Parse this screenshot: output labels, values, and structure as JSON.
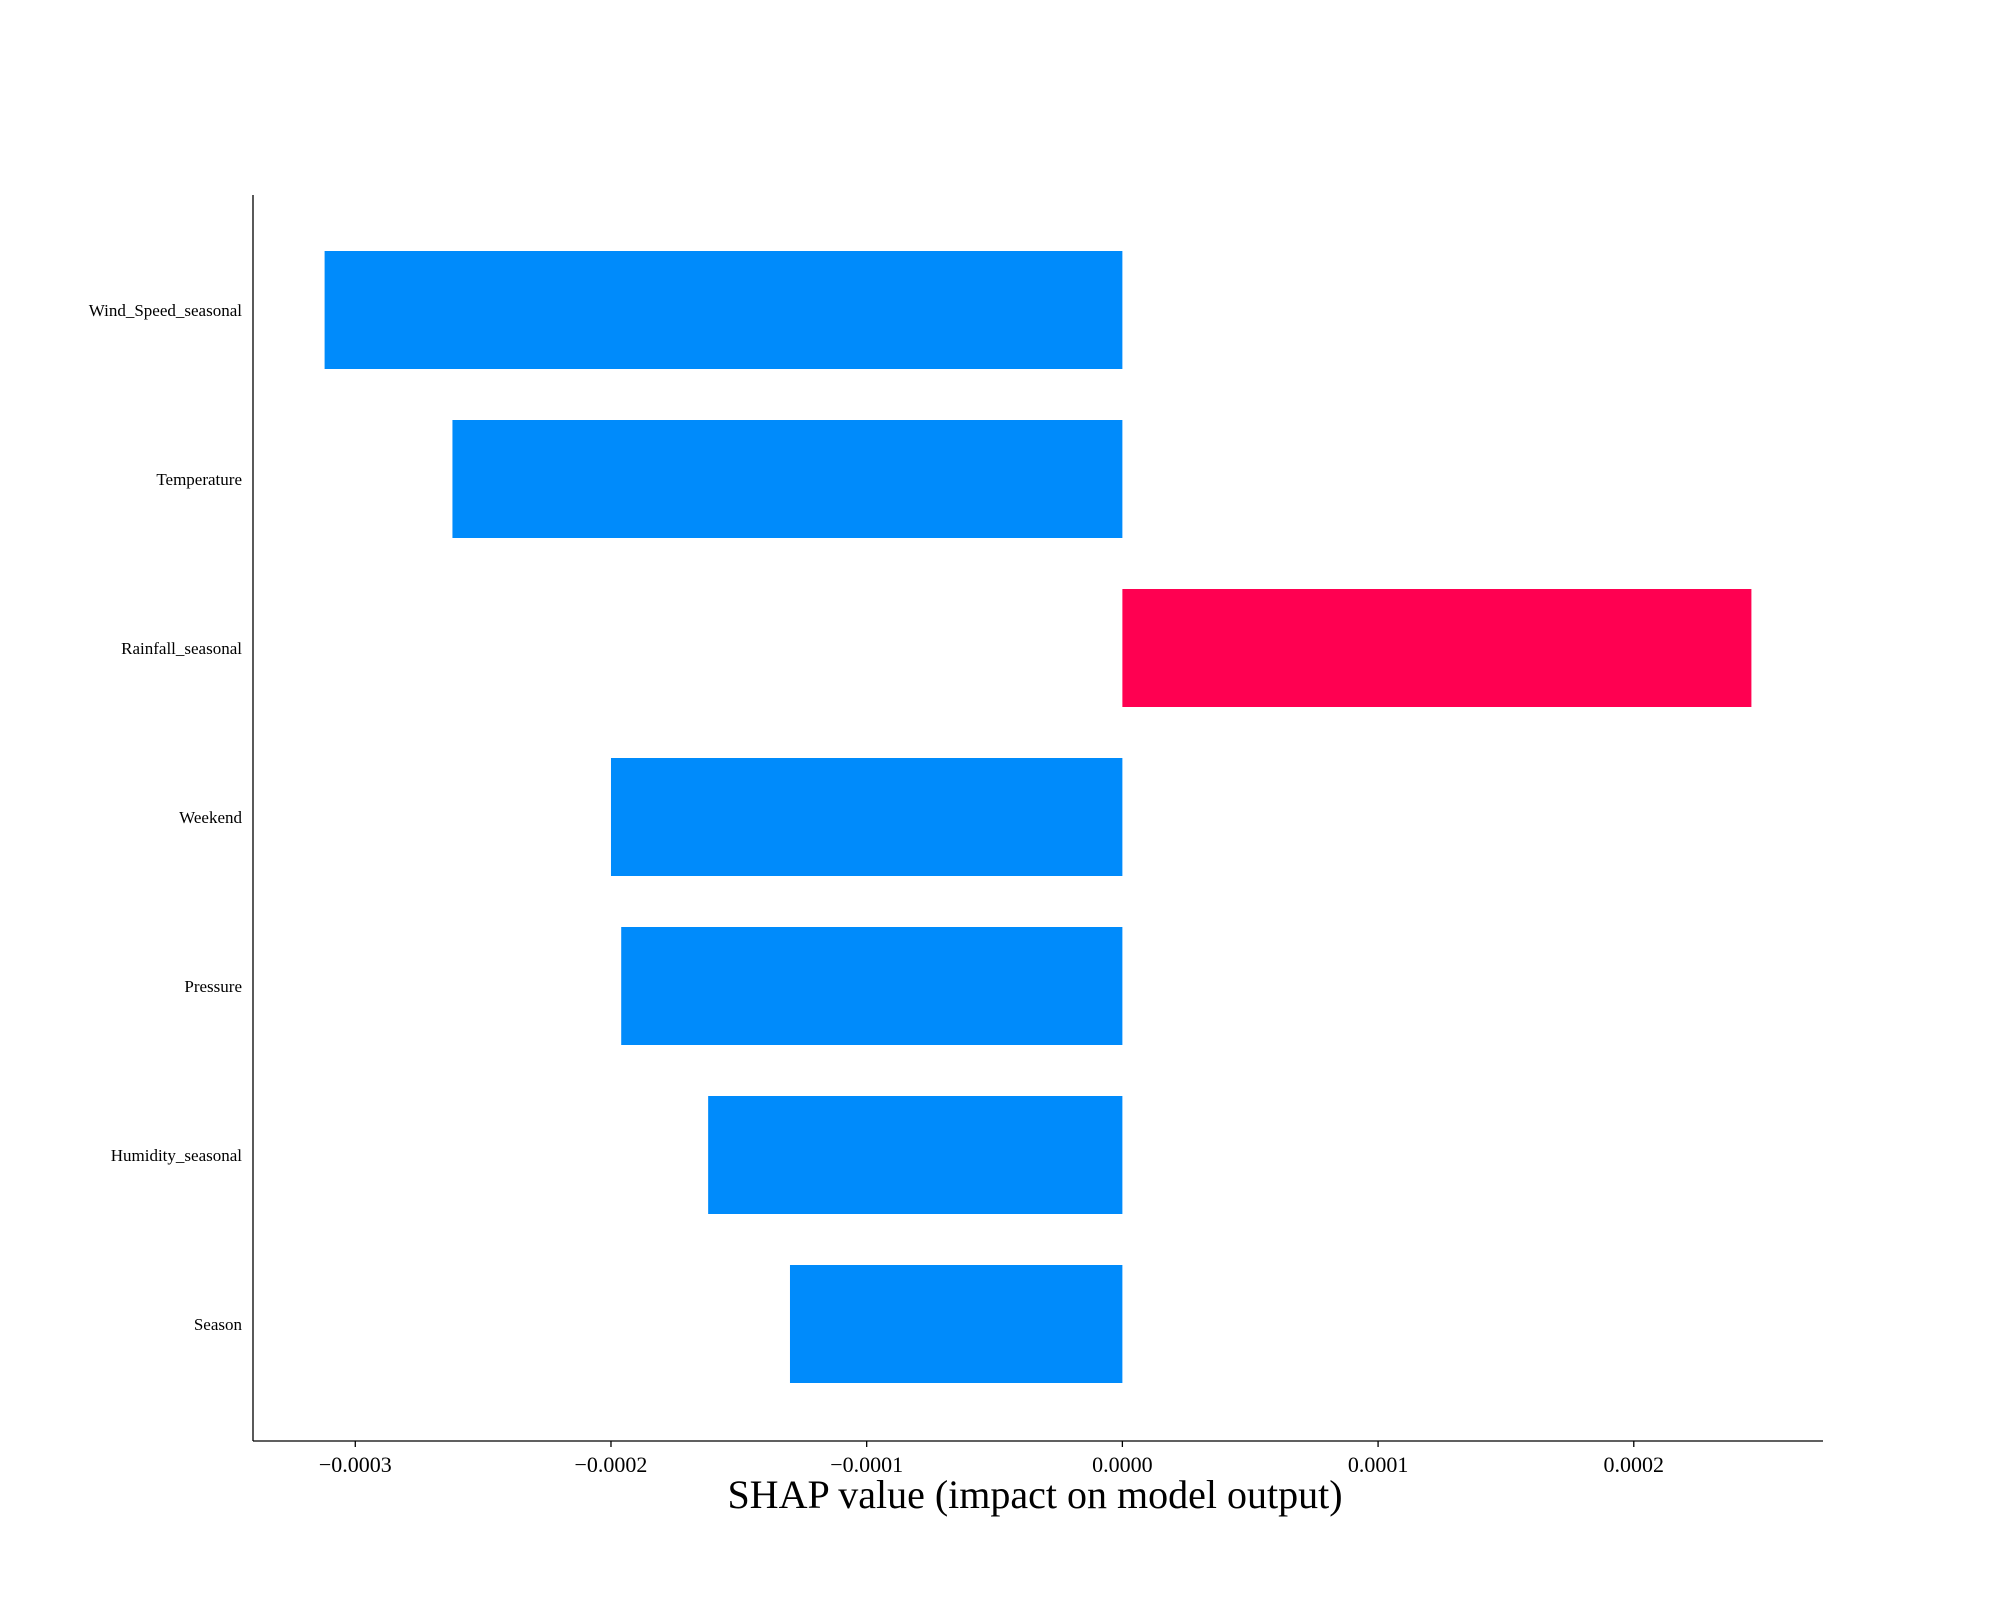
{
  "chart_data": {
    "type": "bar",
    "orientation": "horizontal",
    "categories": [
      "Wind_Speed_seasonal",
      "Temperature",
      "Rainfall_seasonal",
      "Weekend",
      "Pressure",
      "Humidity_seasonal",
      "Season"
    ],
    "values": [
      -0.000312,
      -0.000262,
      0.000246,
      -0.0002,
      -0.000196,
      -0.000162,
      -0.00013
    ],
    "xlabel": "SHAP value (impact on model output)",
    "ylabel": "",
    "title": "",
    "xlim": [
      -0.00034,
      0.000274
    ],
    "xticks": [
      -0.0003,
      -0.0002,
      -0.0001,
      0.0,
      0.0001,
      0.0002
    ],
    "xtick_labels": [
      "−0.0003",
      "−0.0002",
      "−0.0001",
      "0.0000",
      "0.0001",
      "0.0002"
    ],
    "grid": false,
    "legend": "none",
    "colors": {
      "positive": "#ff0051",
      "negative": "#008bfb"
    }
  }
}
